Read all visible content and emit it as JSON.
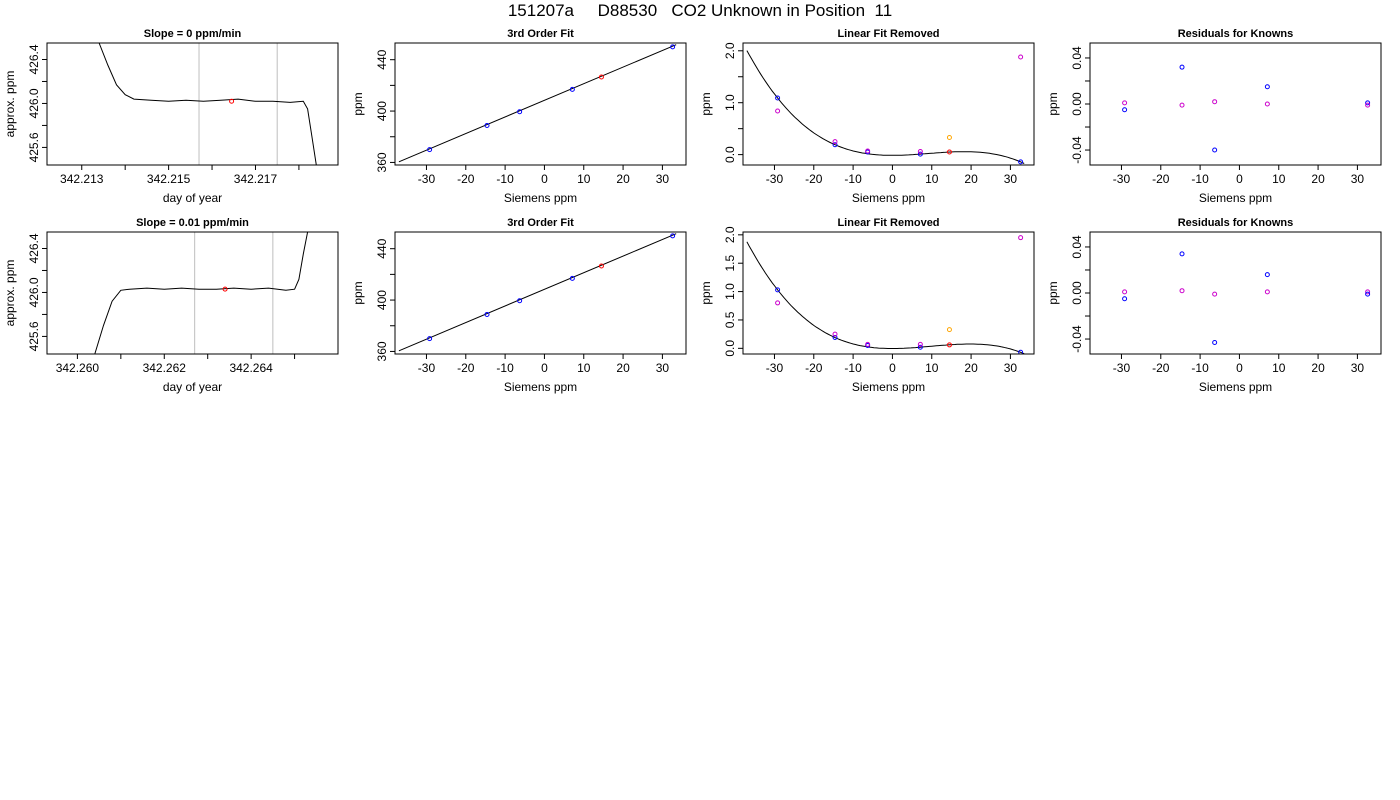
{
  "page_title": "151207a     D88530   CO2 Unknown in Position  11",
  "colors": {
    "known": "#0000ff",
    "unknown_fit": "#ff0000",
    "residual_alt": "#cc00cc",
    "unknown_alt": "#ffa500",
    "trace": "#000000",
    "marker_line": "#bebebe"
  },
  "chart_data": [
    {
      "type": "line",
      "row": 0,
      "col": 0,
      "title": "Slope =  0  ppm/min",
      "xlabel": "day of year",
      "ylabel": "approx. ppm",
      "xlim": [
        342.2124,
        342.2191
      ],
      "ylim": [
        425.44,
        426.55
      ],
      "x_ticks": [
        342.2132,
        342.2142,
        342.2152,
        342.2162,
        342.2172,
        342.2182
      ],
      "x_tick_labels": [
        "342.213",
        "",
        "342.215",
        "",
        "342.217",
        ""
      ],
      "y_ticks": [
        425.6,
        425.8,
        426.0,
        426.2,
        426.4
      ],
      "y_tick_labels": [
        "425.6",
        "",
        "426.0",
        "",
        "426.4"
      ],
      "vlines": [
        342.2159,
        342.2177
      ],
      "trace": [
        [
          342.2136,
          426.55
        ],
        [
          342.2138,
          426.35
        ],
        [
          342.214,
          426.17
        ],
        [
          342.2142,
          426.08
        ],
        [
          342.2144,
          426.04
        ],
        [
          342.2148,
          426.03
        ],
        [
          342.2152,
          426.02
        ],
        [
          342.2156,
          426.03
        ],
        [
          342.216,
          426.02
        ],
        [
          342.2164,
          426.03
        ],
        [
          342.2168,
          426.04
        ],
        [
          342.2172,
          426.02
        ],
        [
          342.2176,
          426.02
        ],
        [
          342.218,
          426.01
        ],
        [
          342.2183,
          426.02
        ],
        [
          342.2184,
          425.95
        ],
        [
          342.2185,
          425.7
        ],
        [
          342.2186,
          425.44
        ]
      ],
      "points": [
        {
          "x": 342.21665,
          "y": 426.02,
          "color": "#ff0000"
        }
      ]
    },
    {
      "type": "scatter",
      "row": 0,
      "col": 1,
      "title": "3rd Order Fit",
      "xlabel": "Siemens ppm",
      "ylabel": "ppm",
      "xlim": [
        -38,
        36
      ],
      "ylim": [
        358,
        453
      ],
      "x_ticks": [
        -30,
        -20,
        -10,
        0,
        10,
        20,
        30
      ],
      "x_tick_labels": [
        "-30",
        "-20",
        "-10",
        "0",
        "10",
        "20",
        "30"
      ],
      "y_ticks": [
        360,
        380,
        400,
        420,
        440
      ],
      "y_tick_labels": [
        "360",
        "",
        "400",
        "",
        "440"
      ],
      "line": [
        [
          -37,
          360.5
        ],
        [
          33.5,
          451.7
        ]
      ],
      "points": [
        {
          "x": -29.2,
          "y": 370.0,
          "color": "#0000ff"
        },
        {
          "x": -14.6,
          "y": 388.8,
          "color": "#0000ff"
        },
        {
          "x": -6.3,
          "y": 399.5,
          "color": "#0000ff"
        },
        {
          "x": 7.1,
          "y": 416.9,
          "color": "#0000ff"
        },
        {
          "x": 14.5,
          "y": 426.5,
          "color": "#ff0000"
        },
        {
          "x": 32.6,
          "y": 450.0,
          "color": "#0000ff"
        }
      ]
    },
    {
      "type": "scatter",
      "row": 0,
      "col": 2,
      "title": "Linear Fit Removed",
      "xlabel": "Siemens ppm",
      "ylabel": "ppm",
      "xlim": [
        -38,
        36
      ],
      "ylim": [
        -0.2,
        2.15
      ],
      "x_ticks": [
        -30,
        -20,
        -10,
        0,
        10,
        20,
        30
      ],
      "x_tick_labels": [
        "-30",
        "-20",
        "-10",
        "0",
        "10",
        "20",
        "30"
      ],
      "y_ticks": [
        0.0,
        0.5,
        1.0,
        1.5,
        2.0
      ],
      "y_tick_labels": [
        "0.0",
        "",
        "1.0",
        "",
        "2.0"
      ],
      "curve_from_points": [
        [
          -29.2,
          1.09
        ],
        [
          -14.6,
          0.19
        ],
        [
          7.1,
          0.01
        ],
        [
          32.6,
          -0.14
        ]
      ],
      "points": [
        {
          "x": -29.2,
          "y": 1.09,
          "color": "#0000ff"
        },
        {
          "x": -29.2,
          "y": 0.84,
          "color": "#cc00cc"
        },
        {
          "x": -14.6,
          "y": 0.19,
          "color": "#0000ff"
        },
        {
          "x": -14.6,
          "y": 0.25,
          "color": "#cc00cc"
        },
        {
          "x": -6.3,
          "y": 0.05,
          "color": "#0000ff"
        },
        {
          "x": -6.3,
          "y": 0.07,
          "color": "#cc00cc"
        },
        {
          "x": 7.1,
          "y": 0.01,
          "color": "#0000ff"
        },
        {
          "x": 7.1,
          "y": 0.06,
          "color": "#cc00cc"
        },
        {
          "x": 14.5,
          "y": 0.05,
          "color": "#ff0000"
        },
        {
          "x": 14.5,
          "y": 0.33,
          "color": "#ffa500"
        },
        {
          "x": 32.6,
          "y": -0.14,
          "color": "#0000ff"
        },
        {
          "x": 32.6,
          "y": 1.88,
          "color": "#cc00cc"
        }
      ]
    },
    {
      "type": "scatter",
      "row": 0,
      "col": 3,
      "title": "Residuals for Knowns",
      "xlabel": "Siemens ppm",
      "ylabel": "ppm",
      "xlim": [
        -38,
        36
      ],
      "ylim": [
        -0.053,
        0.053
      ],
      "x_ticks": [
        -30,
        -20,
        -10,
        0,
        10,
        20,
        30
      ],
      "x_tick_labels": [
        "-30",
        "-20",
        "-10",
        "0",
        "10",
        "20",
        "30"
      ],
      "y_ticks": [
        -0.04,
        -0.02,
        0.0,
        0.02,
        0.04
      ],
      "y_tick_labels": [
        "-0.04",
        "",
        "0.00",
        "",
        "0.04"
      ],
      "points": [
        {
          "x": -29.2,
          "y": 0.001,
          "color": "#cc00cc"
        },
        {
          "x": -29.2,
          "y": -0.005,
          "color": "#0000ff"
        },
        {
          "x": -14.6,
          "y": 0.032,
          "color": "#0000ff"
        },
        {
          "x": -14.6,
          "y": -0.001,
          "color": "#cc00cc"
        },
        {
          "x": -6.3,
          "y": 0.002,
          "color": "#cc00cc"
        },
        {
          "x": -6.3,
          "y": -0.04,
          "color": "#0000ff"
        },
        {
          "x": 7.1,
          "y": 0.015,
          "color": "#0000ff"
        },
        {
          "x": 7.1,
          "y": 0.0,
          "color": "#cc00cc"
        },
        {
          "x": 32.6,
          "y": 0.001,
          "color": "#0000ff"
        },
        {
          "x": 32.6,
          "y": -0.001,
          "color": "#cc00cc"
        }
      ]
    },
    {
      "type": "line",
      "row": 1,
      "col": 0,
      "title": "Slope =  0.01  ppm/min",
      "xlabel": "day of year",
      "ylabel": "approx. ppm",
      "xlim": [
        342.2593,
        342.266
      ],
      "ylim": [
        425.44,
        426.55
      ],
      "x_ticks": [
        342.26,
        342.261,
        342.262,
        342.263,
        342.264,
        342.265
      ],
      "x_tick_labels": [
        "342.260",
        "",
        "342.262",
        "",
        "342.264",
        ""
      ],
      "y_ticks": [
        425.6,
        425.8,
        426.0,
        426.2,
        426.4
      ],
      "y_tick_labels": [
        "425.6",
        "",
        "426.0",
        "",
        "426.4"
      ],
      "vlines": [
        342.2627,
        342.2645
      ],
      "trace": [
        [
          342.2604,
          425.44
        ],
        [
          342.2606,
          425.7
        ],
        [
          342.2608,
          425.92
        ],
        [
          342.261,
          426.02
        ],
        [
          342.2612,
          426.03
        ],
        [
          342.2616,
          426.04
        ],
        [
          342.262,
          426.03
        ],
        [
          342.2624,
          426.04
        ],
        [
          342.2628,
          426.03
        ],
        [
          342.2632,
          426.03
        ],
        [
          342.2636,
          426.04
        ],
        [
          342.264,
          426.03
        ],
        [
          342.2644,
          426.04
        ],
        [
          342.2648,
          426.02
        ],
        [
          342.265,
          426.03
        ],
        [
          342.2651,
          426.12
        ],
        [
          342.2652,
          426.35
        ],
        [
          342.2653,
          426.55
        ]
      ],
      "points": [
        {
          "x": 342.2634,
          "y": 426.03,
          "color": "#ff0000"
        }
      ]
    },
    {
      "type": "scatter",
      "row": 1,
      "col": 1,
      "title": "3rd Order Fit",
      "xlabel": "Siemens ppm",
      "ylabel": "ppm",
      "xlim": [
        -38,
        36
      ],
      "ylim": [
        358,
        453
      ],
      "x_ticks": [
        -30,
        -20,
        -10,
        0,
        10,
        20,
        30
      ],
      "x_tick_labels": [
        "-30",
        "-20",
        "-10",
        "0",
        "10",
        "20",
        "30"
      ],
      "y_ticks": [
        360,
        380,
        400,
        420,
        440
      ],
      "y_tick_labels": [
        "360",
        "",
        "400",
        "",
        "440"
      ],
      "line": [
        [
          -37,
          360.5
        ],
        [
          33.5,
          451.7
        ]
      ],
      "points": [
        {
          "x": -29.2,
          "y": 370.0,
          "color": "#0000ff"
        },
        {
          "x": -14.6,
          "y": 388.8,
          "color": "#0000ff"
        },
        {
          "x": -6.3,
          "y": 399.5,
          "color": "#0000ff"
        },
        {
          "x": 7.1,
          "y": 416.9,
          "color": "#0000ff"
        },
        {
          "x": 14.5,
          "y": 426.5,
          "color": "#ff0000"
        },
        {
          "x": 32.6,
          "y": 450.0,
          "color": "#0000ff"
        }
      ]
    },
    {
      "type": "scatter",
      "row": 1,
      "col": 2,
      "title": "Linear Fit Removed",
      "xlabel": "Siemens ppm",
      "ylabel": "ppm",
      "xlim": [
        -38,
        36
      ],
      "ylim": [
        -0.1,
        2.05
      ],
      "x_ticks": [
        -30,
        -20,
        -10,
        0,
        10,
        20,
        30
      ],
      "x_tick_labels": [
        "-30",
        "-20",
        "-10",
        "0",
        "10",
        "20",
        "30"
      ],
      "y_ticks": [
        0.0,
        0.5,
        1.0,
        1.5,
        2.0
      ],
      "y_tick_labels": [
        "0.0",
        "0.5",
        "1.0",
        "1.5",
        "2.0"
      ],
      "curve_from_points": [
        [
          -29.2,
          1.03
        ],
        [
          -14.6,
          0.19
        ],
        [
          7.1,
          0.02
        ],
        [
          32.6,
          -0.07
        ]
      ],
      "points": [
        {
          "x": -29.2,
          "y": 1.03,
          "color": "#0000ff"
        },
        {
          "x": -29.2,
          "y": 0.8,
          "color": "#cc00cc"
        },
        {
          "x": -14.6,
          "y": 0.19,
          "color": "#0000ff"
        },
        {
          "x": -14.6,
          "y": 0.25,
          "color": "#cc00cc"
        },
        {
          "x": -6.3,
          "y": 0.05,
          "color": "#0000ff"
        },
        {
          "x": -6.3,
          "y": 0.07,
          "color": "#cc00cc"
        },
        {
          "x": 7.1,
          "y": 0.02,
          "color": "#0000ff"
        },
        {
          "x": 7.1,
          "y": 0.07,
          "color": "#cc00cc"
        },
        {
          "x": 14.5,
          "y": 0.06,
          "color": "#ff0000"
        },
        {
          "x": 14.5,
          "y": 0.33,
          "color": "#ffa500"
        },
        {
          "x": 32.6,
          "y": -0.07,
          "color": "#0000ff"
        },
        {
          "x": 32.6,
          "y": 1.95,
          "color": "#cc00cc"
        }
      ]
    },
    {
      "type": "scatter",
      "row": 1,
      "col": 3,
      "title": "Residuals for Knowns",
      "xlabel": "Siemens ppm",
      "ylabel": "ppm",
      "xlim": [
        -38,
        36
      ],
      "ylim": [
        -0.053,
        0.053
      ],
      "x_ticks": [
        -30,
        -20,
        -10,
        0,
        10,
        20,
        30
      ],
      "x_tick_labels": [
        "-30",
        "-20",
        "-10",
        "0",
        "10",
        "20",
        "30"
      ],
      "y_ticks": [
        -0.04,
        -0.02,
        0.0,
        0.02,
        0.04
      ],
      "y_tick_labels": [
        "-0.04",
        "",
        "0.00",
        "",
        "0.04"
      ],
      "points": [
        {
          "x": -29.2,
          "y": 0.001,
          "color": "#cc00cc"
        },
        {
          "x": -29.2,
          "y": -0.005,
          "color": "#0000ff"
        },
        {
          "x": -14.6,
          "y": 0.034,
          "color": "#0000ff"
        },
        {
          "x": -14.6,
          "y": 0.002,
          "color": "#cc00cc"
        },
        {
          "x": -6.3,
          "y": -0.001,
          "color": "#cc00cc"
        },
        {
          "x": -6.3,
          "y": -0.043,
          "color": "#0000ff"
        },
        {
          "x": 7.1,
          "y": 0.016,
          "color": "#0000ff"
        },
        {
          "x": 7.1,
          "y": 0.001,
          "color": "#cc00cc"
        },
        {
          "x": 32.6,
          "y": 0.001,
          "color": "#cc00cc"
        },
        {
          "x": 32.6,
          "y": -0.001,
          "color": "#0000ff"
        }
      ]
    }
  ]
}
